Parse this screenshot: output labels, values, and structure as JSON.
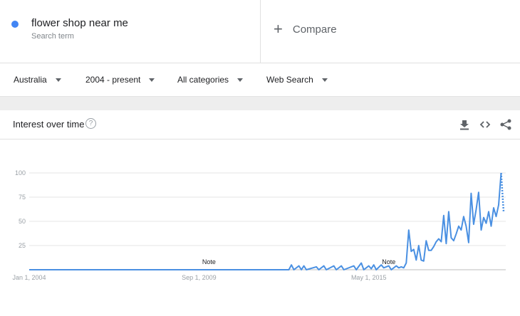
{
  "search_term": {
    "name": "flower shop near me",
    "subtitle": "Search term",
    "color": "#4285f4"
  },
  "compare": {
    "icon": "plus-icon",
    "label": "Compare"
  },
  "filters": {
    "region": "Australia",
    "time_range": "2004 - present",
    "category": "All categories",
    "search_type": "Web Search"
  },
  "card": {
    "title": "Interest over time",
    "help_icon": "help-icon",
    "help_glyph": "?",
    "tools": [
      "download-icon",
      "embed-icon",
      "share-icon"
    ]
  },
  "chart_data": {
    "type": "line",
    "title": "",
    "xlabel": "",
    "ylabel": "",
    "ylim": [
      0,
      100
    ],
    "ytick_labels": [
      "100",
      "75",
      "50",
      "25"
    ],
    "yticks": [
      100,
      75,
      50,
      25
    ],
    "x_tick_labels": [
      "Jan 1, 2004",
      "Sep 1, 2009",
      "May 1, 2015"
    ],
    "x_tick_dates": [
      "2004-01",
      "2009-09",
      "2015-05"
    ],
    "x_start": "2004-01",
    "x_end": "2019-11",
    "grid": true,
    "color": "#4a90e2",
    "annotations": [
      {
        "text": "Note",
        "at": "2010-01"
      },
      {
        "text": "Note",
        "at": "2016-01"
      }
    ],
    "series": [
      {
        "name": "flower shop near me",
        "points": [
          [
            "2004-01",
            0
          ],
          [
            "2012-09",
            0
          ],
          [
            "2012-10",
            5
          ],
          [
            "2012-11",
            0
          ],
          [
            "2013-01",
            4
          ],
          [
            "2013-02",
            0
          ],
          [
            "2013-03",
            4
          ],
          [
            "2013-04",
            0
          ],
          [
            "2013-08",
            3
          ],
          [
            "2013-09",
            0
          ],
          [
            "2013-11",
            4
          ],
          [
            "2013-12",
            0
          ],
          [
            "2014-03",
            4
          ],
          [
            "2014-04",
            0
          ],
          [
            "2014-06",
            4
          ],
          [
            "2014-07",
            0
          ],
          [
            "2014-11",
            4
          ],
          [
            "2014-12",
            0
          ],
          [
            "2015-02",
            7
          ],
          [
            "2015-03",
            0
          ],
          [
            "2015-05",
            4
          ],
          [
            "2015-06",
            1
          ],
          [
            "2015-07",
            5
          ],
          [
            "2015-08",
            0
          ],
          [
            "2015-10",
            5
          ],
          [
            "2015-11",
            2
          ],
          [
            "2016-01",
            4
          ],
          [
            "2016-02",
            0
          ],
          [
            "2016-04",
            4
          ],
          [
            "2016-05",
            2
          ],
          [
            "2016-06",
            3
          ],
          [
            "2016-07",
            2
          ],
          [
            "2016-08",
            7
          ],
          [
            "2016-09",
            41
          ],
          [
            "2016-10",
            19
          ],
          [
            "2016-11",
            21
          ],
          [
            "2016-12",
            10
          ],
          [
            "2017-01",
            25
          ],
          [
            "2017-02",
            10
          ],
          [
            "2017-03",
            9
          ],
          [
            "2017-04",
            30
          ],
          [
            "2017-05",
            20
          ],
          [
            "2017-06",
            20
          ],
          [
            "2017-07",
            24
          ],
          [
            "2017-08",
            29
          ],
          [
            "2017-09",
            32
          ],
          [
            "2017-10",
            29
          ],
          [
            "2017-11",
            56
          ],
          [
            "2017-12",
            27
          ],
          [
            "2018-01",
            60
          ],
          [
            "2018-02",
            33
          ],
          [
            "2018-03",
            30
          ],
          [
            "2018-04",
            37
          ],
          [
            "2018-05",
            45
          ],
          [
            "2018-06",
            41
          ],
          [
            "2018-07",
            55
          ],
          [
            "2018-08",
            45
          ],
          [
            "2018-09",
            28
          ],
          [
            "2018-10",
            79
          ],
          [
            "2018-11",
            47
          ],
          [
            "2018-12",
            62
          ],
          [
            "2019-01",
            80
          ],
          [
            "2019-02",
            41
          ],
          [
            "2019-03",
            54
          ],
          [
            "2019-04",
            48
          ],
          [
            "2019-05",
            60
          ],
          [
            "2019-06",
            45
          ],
          [
            "2019-07",
            64
          ],
          [
            "2019-08",
            55
          ],
          [
            "2019-09",
            67
          ],
          [
            "2019-10",
            100
          ]
        ],
        "partial": [
          [
            "2019-10",
            100
          ],
          [
            "2019-11",
            60
          ]
        ]
      }
    ]
  }
}
